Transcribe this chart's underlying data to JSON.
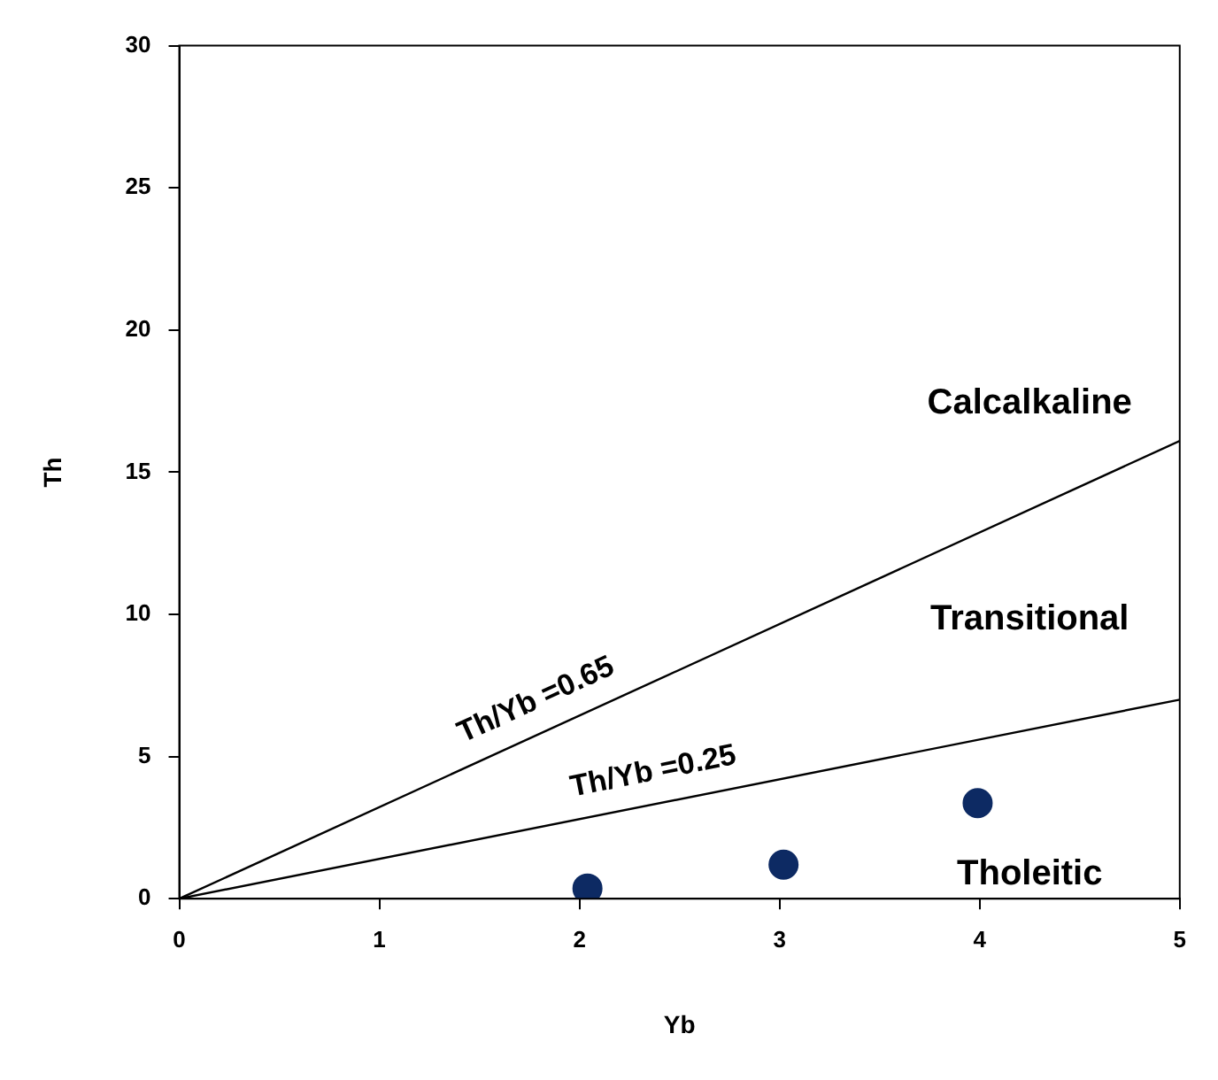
{
  "chart_data": {
    "type": "scatter",
    "xlabel": "Yb",
    "ylabel": "Th",
    "xlim": [
      0,
      5
    ],
    "ylim": [
      0,
      30
    ],
    "xticks": [
      0,
      1,
      2,
      3,
      4,
      5
    ],
    "yticks": [
      0,
      5,
      10,
      15,
      20,
      25,
      30
    ],
    "grid": false,
    "legend": false,
    "marker": "circle",
    "series": [
      {
        "type": "line",
        "color": "#000000",
        "x": [
          0,
          5
        ],
        "values": [
          0,
          16.1
        ],
        "line_style": "solid",
        "marker": "none"
      },
      {
        "type": "line",
        "color": "#000000",
        "x": [
          0,
          5
        ],
        "values": [
          0,
          7.0
        ],
        "line_style": "solid",
        "marker": "none"
      },
      {
        "color": "#0d2a63",
        "x": [
          2.04,
          3.02,
          3.99
        ],
        "values": [
          0.36,
          1.2,
          3.36
        ]
      }
    ],
    "annotations": [
      "Th/Yb =0.65",
      "Th/Yb =0.25",
      "Calcalkaline",
      "Transitional",
      "Tholeitic"
    ]
  }
}
